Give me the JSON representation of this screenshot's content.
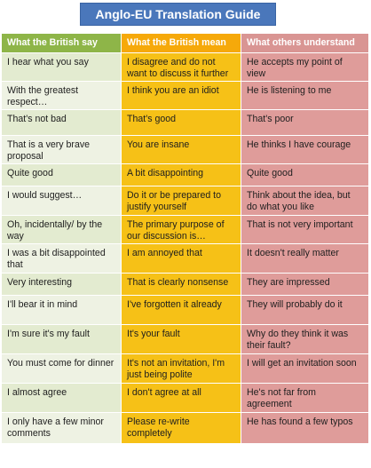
{
  "title": "Anglo-EU Translation Guide",
  "headers": [
    "What the British say",
    "What the British mean",
    "What others understand"
  ],
  "rows": [
    [
      "I hear what you say",
      "I disagree and do not want to discuss it further",
      "He accepts my point of view"
    ],
    [
      "With the greatest respect…",
      "I think you are an idiot",
      "He is listening to me"
    ],
    [
      "That's not bad",
      "That's good",
      "That's poor"
    ],
    [
      "That is a very brave proposal",
      "You are insane",
      "He thinks I have courage"
    ],
    [
      "Quite good",
      "A bit disappointing",
      "Quite good"
    ],
    [
      "I would suggest…",
      "Do it or be prepared to justify yourself",
      "Think about the idea, but do what you like"
    ],
    [
      "Oh, incidentally/ by the way",
      "The primary purpose of our discussion is…",
      "That is not very important"
    ],
    [
      "I was a bit disappointed that",
      "I am annoyed that",
      "It doesn't really matter"
    ],
    [
      "Very interesting",
      "That is clearly nonsense",
      "They are impressed"
    ],
    [
      "I'll bear it in mind",
      "I've forgotten it already",
      "They will probably do it"
    ],
    [
      "I'm sure it's my fault",
      "It's your fault",
      "Why do they think it was their fault?"
    ],
    [
      "You must come for dinner",
      "It's not an invitation, I'm just being polite",
      "I will get an invitation soon"
    ],
    [
      "I almost agree",
      "I don't agree at all",
      "He's not far from agreement"
    ],
    [
      "I only have a few minor comments",
      "Please re-write completely",
      "He has found a few typos"
    ]
  ]
}
